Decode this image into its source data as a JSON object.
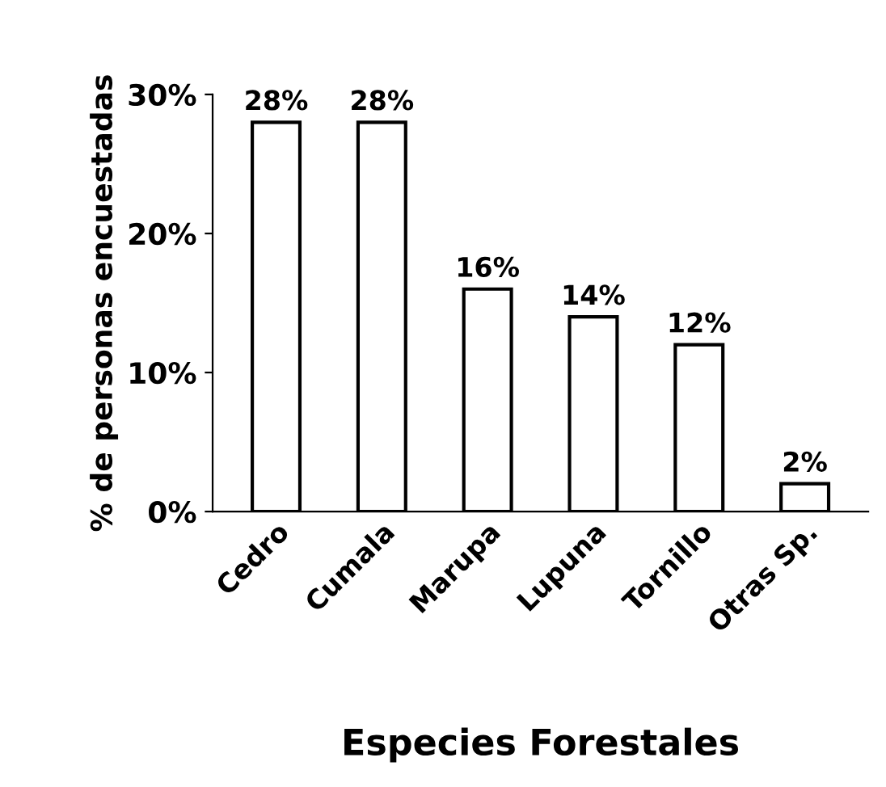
{
  "chart_data": {
    "type": "bar",
    "xlabel": "Especies Forestales",
    "ylabel": "% de personas encuestadas",
    "categories": [
      "Cedro",
      "Cumala",
      "Marupa",
      "Lupuna",
      "Tornillo",
      "Otras Sp."
    ],
    "values": [
      28,
      28,
      16,
      14,
      12,
      2
    ],
    "value_labels": [
      "28%",
      "28%",
      "16%",
      "14%",
      "12%",
      "2%"
    ],
    "color": "#ffffff",
    "ylim": [
      0,
      30
    ],
    "yticks": [
      {
        "value": 0,
        "label": "0%"
      },
      {
        "value": 10,
        "label": "10%"
      },
      {
        "value": 20,
        "label": "20%"
      },
      {
        "value": 30,
        "label": "30%"
      }
    ],
    "grid": false,
    "legend": false
  }
}
